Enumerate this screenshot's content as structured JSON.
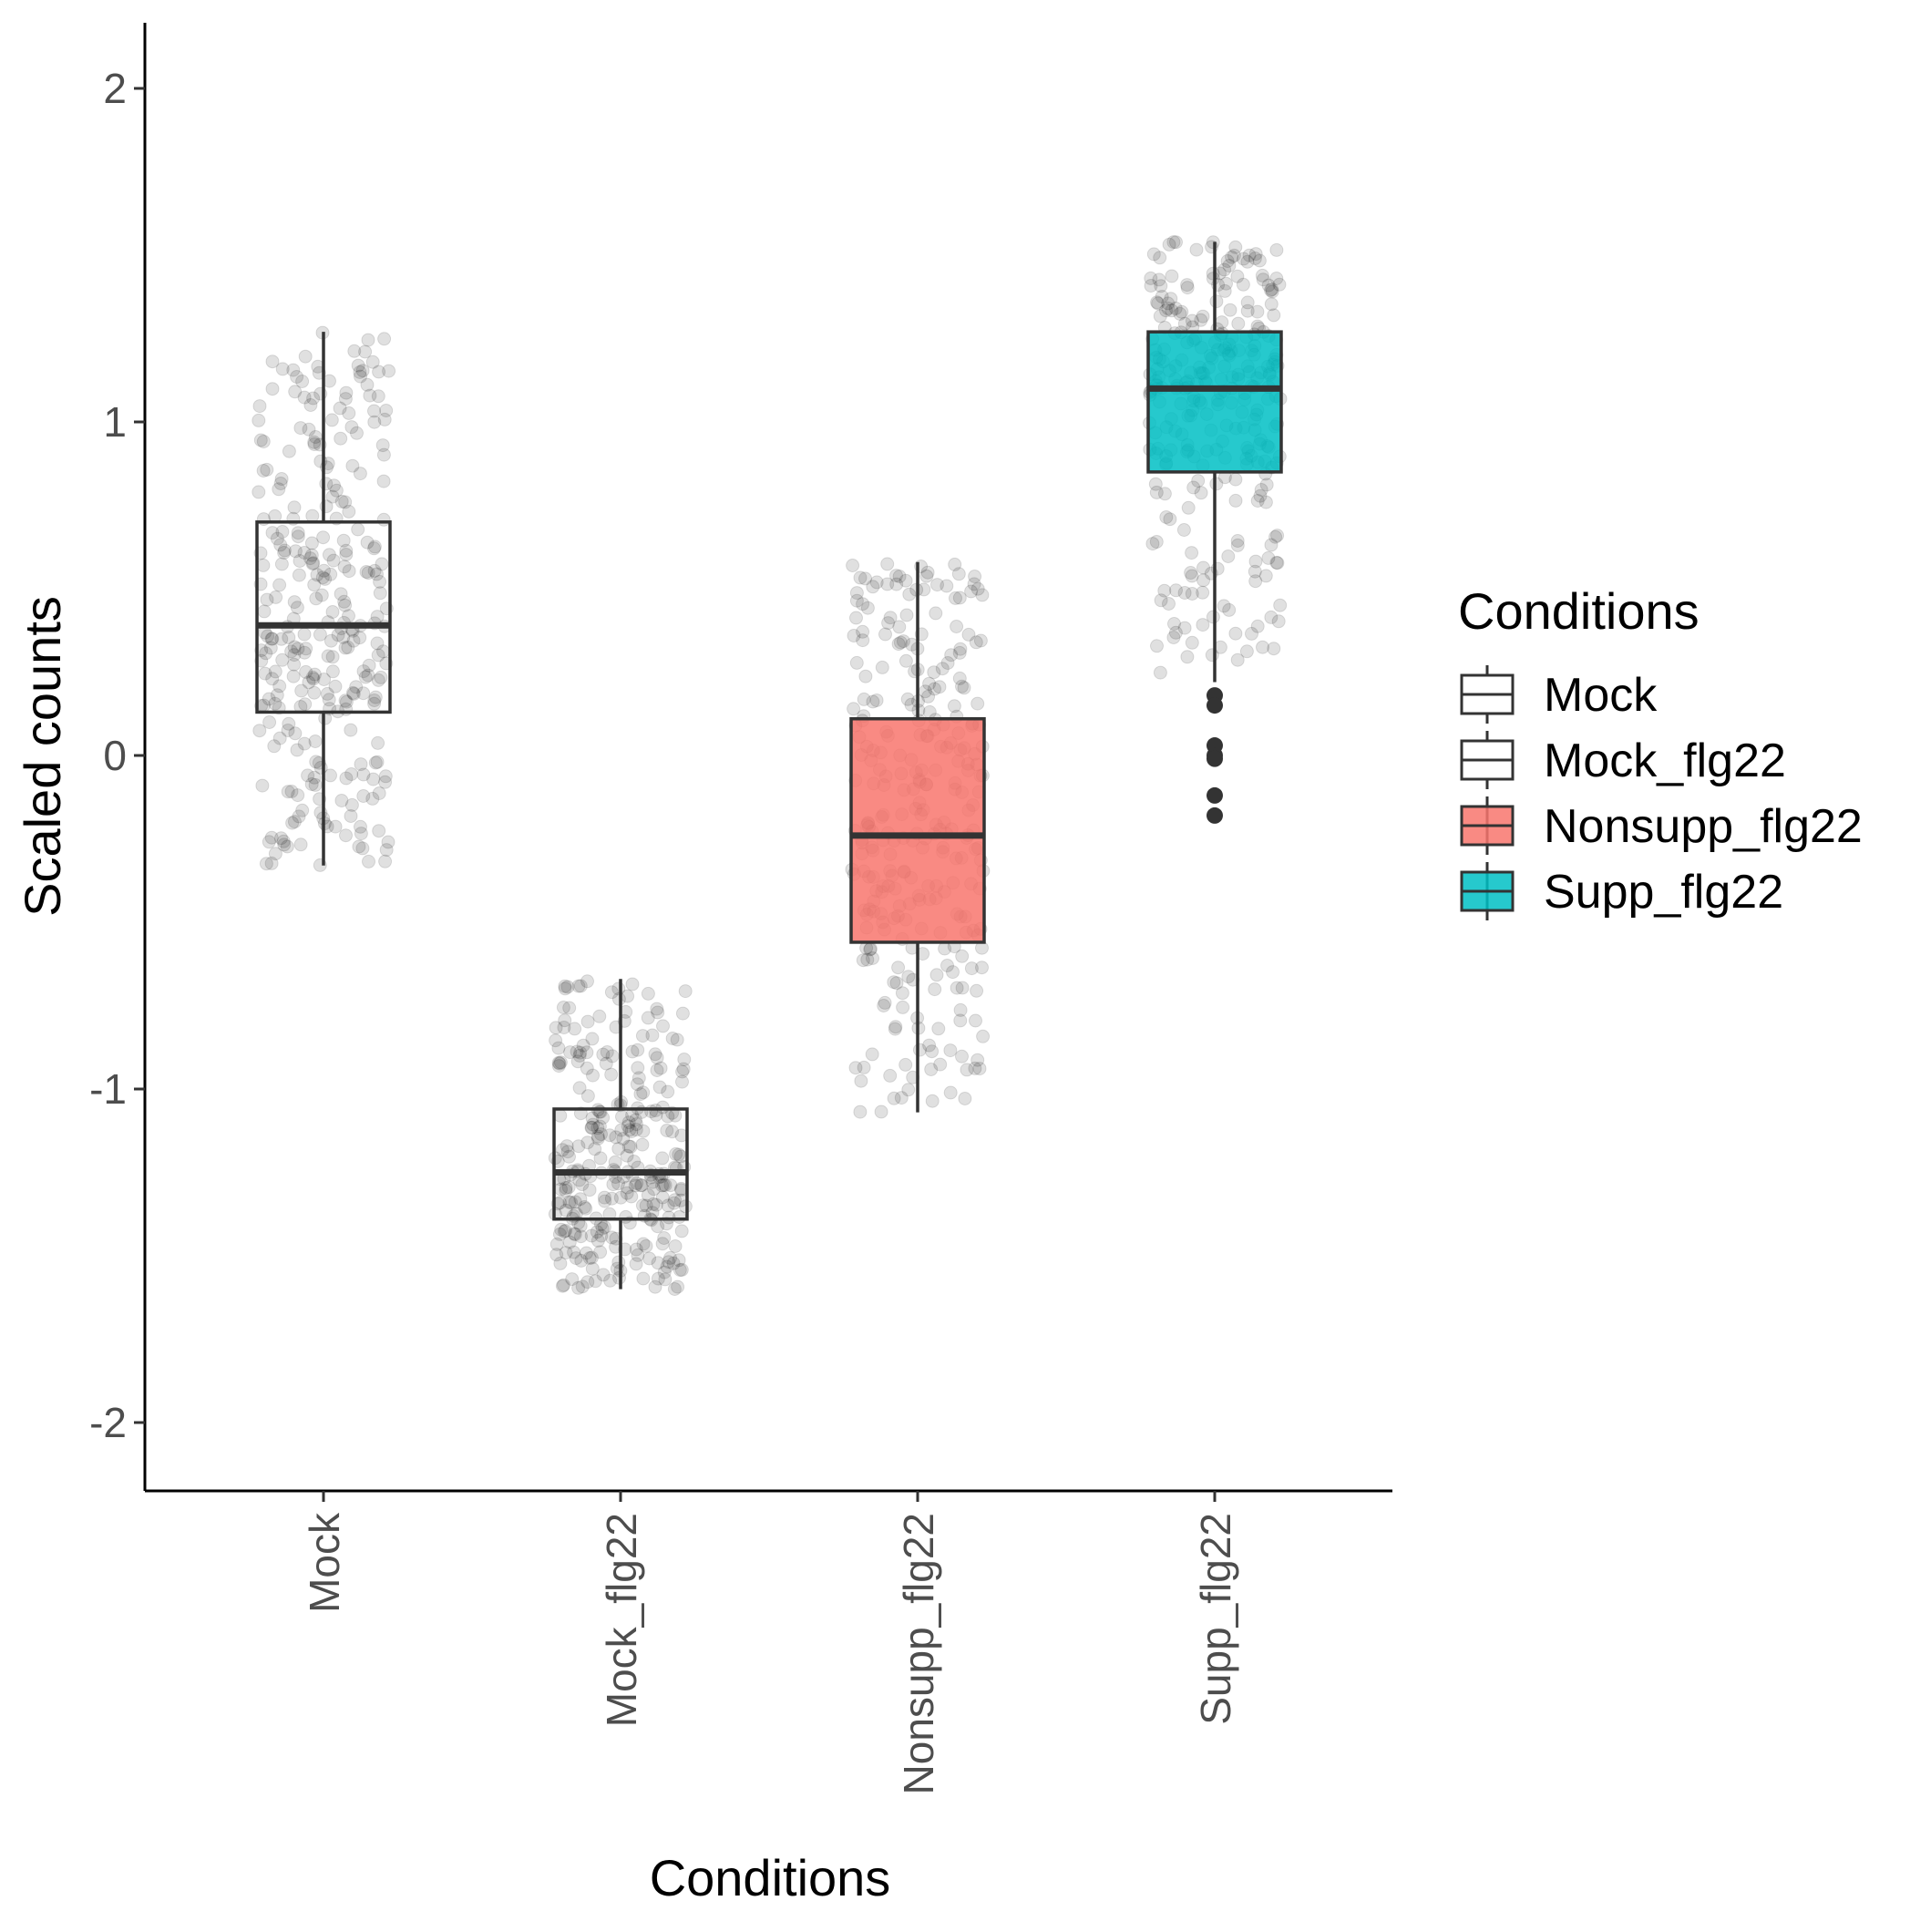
{
  "chart_data": {
    "type": "boxplot",
    "xlabel": "Conditions",
    "ylabel": "Scaled counts",
    "ylim": [
      -2.2,
      2.2
    ],
    "yticks": [
      -2,
      -1,
      0,
      1,
      2
    ],
    "ytick_labels": [
      "-2",
      "-1",
      "0",
      "1",
      "2"
    ],
    "categories": [
      "Mock",
      "Mock_flg22",
      "Nonsupp_flg22",
      "Supp_flg22"
    ],
    "grid": false,
    "jitter_points": true,
    "legend": {
      "title": "Conditions",
      "position": "right",
      "entries": [
        "Mock",
        "Mock_flg22",
        "Nonsupp_flg22",
        "Supp_flg22"
      ]
    },
    "colors": {
      "Mock": "#ffffff",
      "Mock_flg22": "#ffffff",
      "Nonsupp_flg22": "#f8766d",
      "Supp_flg22": "#00bfc4",
      "outline": "#333333",
      "points": "#000000"
    },
    "boxes": [
      {
        "name": "Mock",
        "whisker_low": -0.33,
        "q1": 0.13,
        "median": 0.39,
        "q3": 0.7,
        "whisker_high": 1.27,
        "outliers": [],
        "points_range": [
          -0.33,
          1.27
        ]
      },
      {
        "name": "Mock_flg22",
        "whisker_low": -1.6,
        "q1": -1.39,
        "median": -1.25,
        "q3": -1.06,
        "whisker_high": -0.67,
        "outliers": [],
        "points_range": [
          -1.6,
          -0.67
        ]
      },
      {
        "name": "Nonsupp_flg22",
        "whisker_low": -1.07,
        "q1": -0.56,
        "median": -0.24,
        "q3": 0.11,
        "whisker_high": 0.58,
        "outliers": [],
        "points_range": [
          -1.07,
          0.58
        ]
      },
      {
        "name": "Supp_flg22",
        "whisker_low": 0.22,
        "q1": 0.85,
        "median": 1.1,
        "q3": 1.27,
        "whisker_high": 1.54,
        "outliers": [
          0.18,
          0.15,
          0.03,
          0.0,
          -0.01,
          -0.12,
          -0.18
        ],
        "points_range": [
          -0.2,
          1.55
        ]
      }
    ]
  }
}
